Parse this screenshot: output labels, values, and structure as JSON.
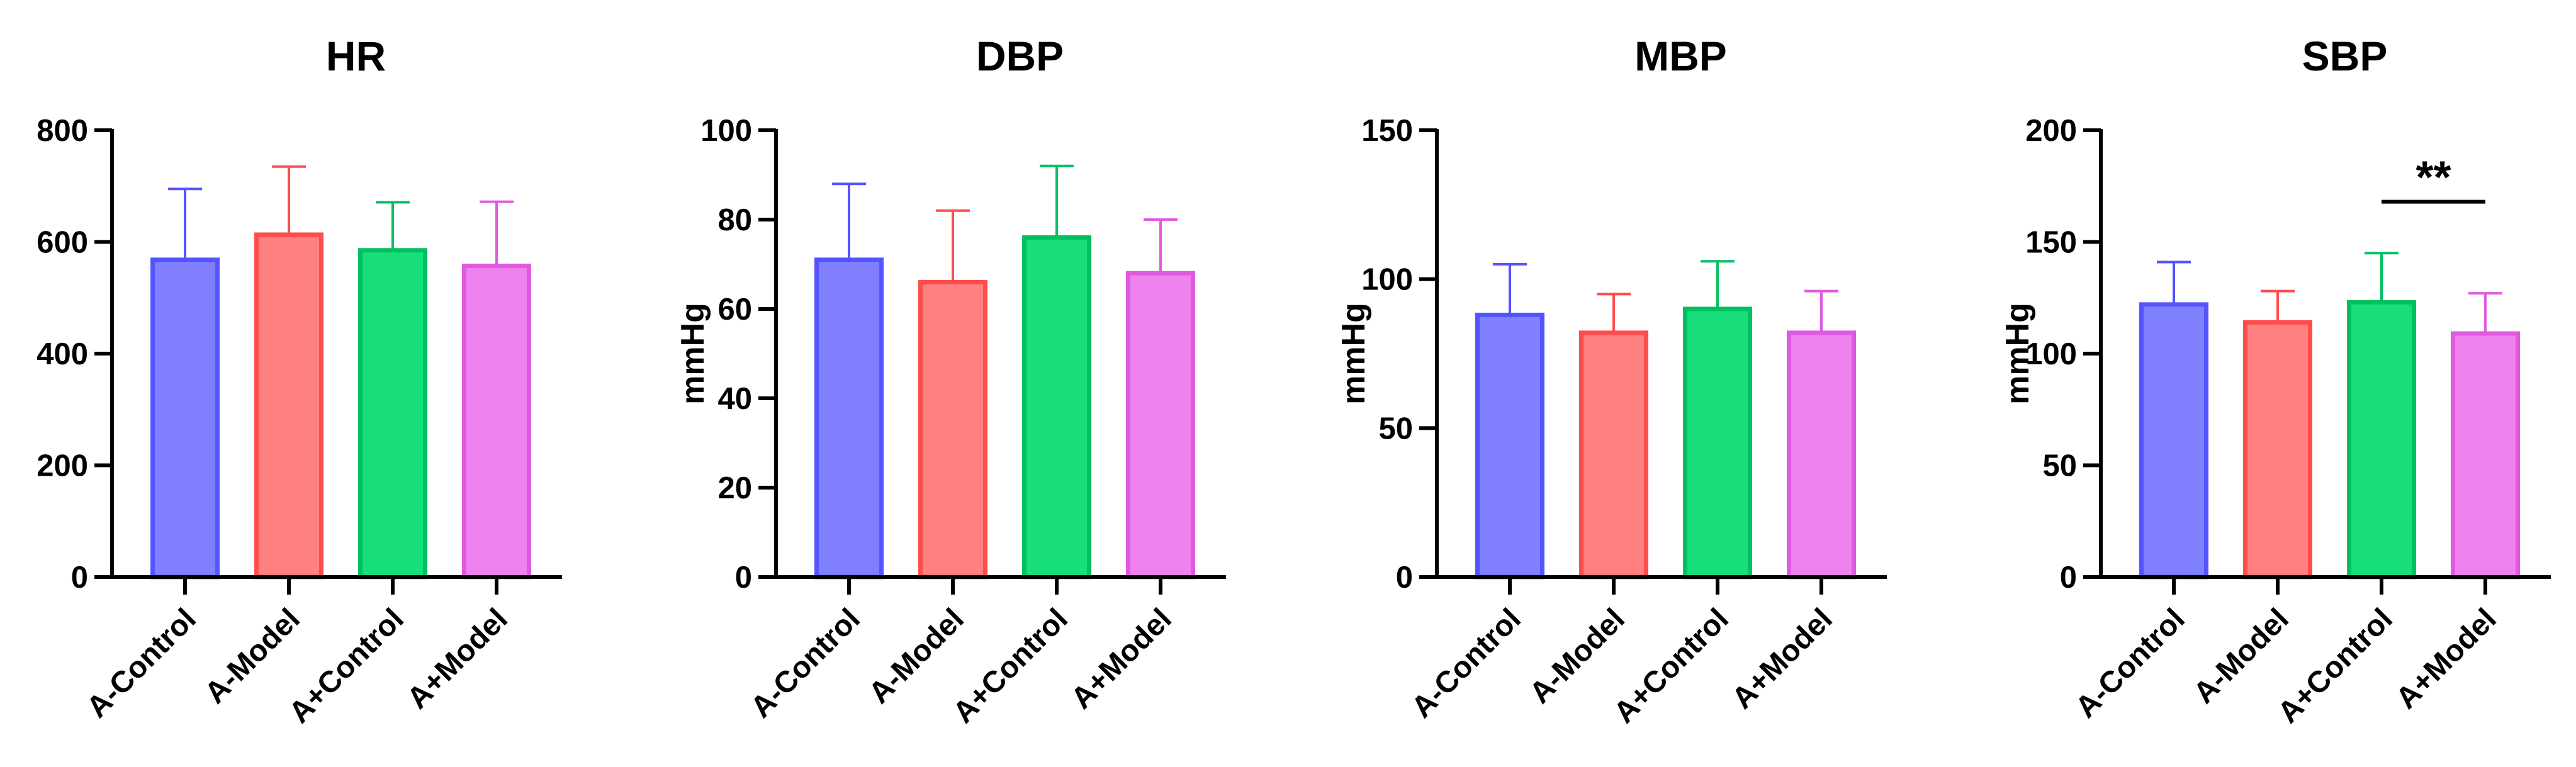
{
  "chart_data": [
    {
      "type": "bar",
      "title": "HR",
      "ylabel": "",
      "xlabel": "",
      "ylim": [
        0,
        800
      ],
      "yticks": [
        "0",
        "200",
        "400",
        "600",
        "800"
      ],
      "categories": [
        "A-Control",
        "A-Model",
        "A+Control",
        "A+Model"
      ],
      "values": [
        568,
        613,
        585,
        557
      ],
      "errors": [
        127,
        122,
        86,
        115
      ],
      "significance": null
    },
    {
      "type": "bar",
      "title": "DBP",
      "ylabel": "mmHg",
      "xlabel": "",
      "ylim": [
        0,
        100
      ],
      "yticks": [
        "0",
        "20",
        "40",
        "60",
        "80",
        "100"
      ],
      "categories": [
        "A-Control",
        "A-Model",
        "A+Control",
        "A+Model"
      ],
      "values": [
        71,
        66,
        76,
        68
      ],
      "errors": [
        17,
        16,
        16,
        12
      ],
      "significance": null
    },
    {
      "type": "bar",
      "title": "MBP",
      "ylabel": "mmHg",
      "xlabel": "",
      "ylim": [
        0,
        150
      ],
      "yticks": [
        "0",
        "50",
        "100",
        "150"
      ],
      "categories": [
        "A-Control",
        "A-Model",
        "A+Control",
        "A+Model"
      ],
      "values": [
        88,
        82,
        90,
        82
      ],
      "errors": [
        17,
        13,
        16,
        14
      ],
      "significance": null
    },
    {
      "type": "bar",
      "title": "SBP",
      "ylabel": "mmHg",
      "xlabel": "",
      "ylim": [
        0,
        200
      ],
      "yticks": [
        "0",
        "50",
        "100",
        "150",
        "200"
      ],
      "categories": [
        "A-Control",
        "A-Model",
        "A+Control",
        "A+Model"
      ],
      "values": [
        122,
        114,
        123,
        109
      ],
      "errors": [
        19,
        14,
        22,
        18
      ],
      "significance": {
        "label": "**",
        "from": 2,
        "to": 3,
        "y": 168
      }
    }
  ],
  "colors": {
    "fills": [
      "#8080ff",
      "#ff8080",
      "#17de7a",
      "#ee82ee"
    ],
    "strokes": [
      "#5454ff",
      "#ff4c4c",
      "#00c060",
      "#e05ae0"
    ],
    "axis": "#000000"
  }
}
